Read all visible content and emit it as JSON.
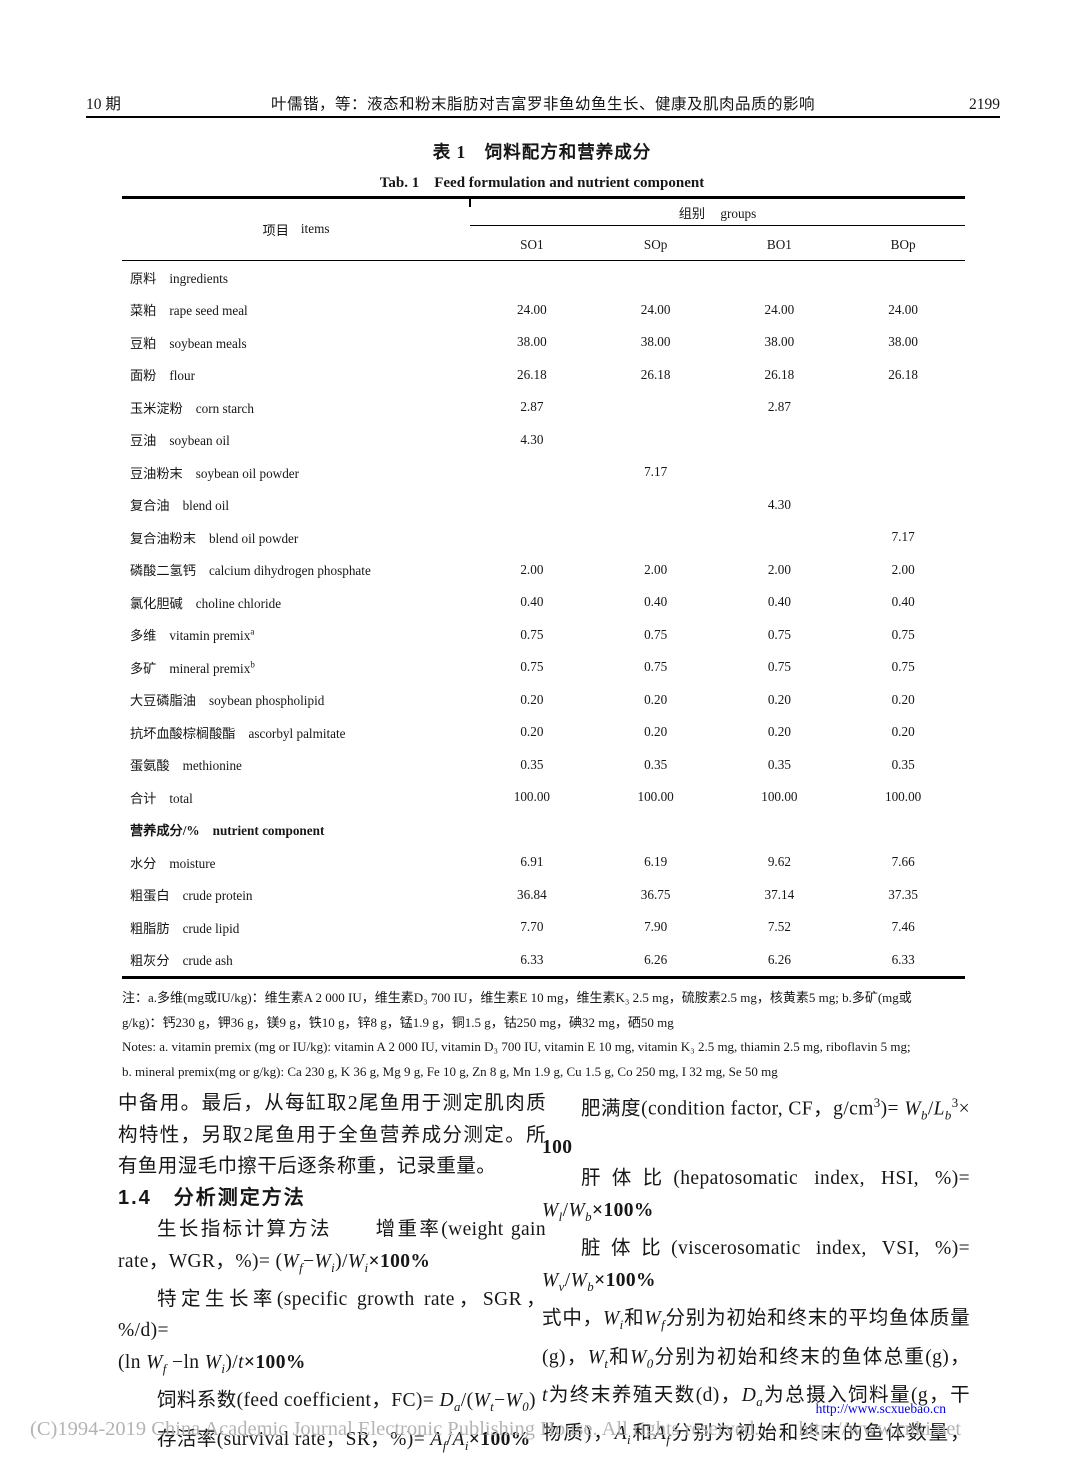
{
  "header": {
    "issue": "10 期",
    "running_title": "叶儒锴，等：液态和粉末脂肪对吉富罗非鱼幼鱼生长、健康及肌肉品质的影响",
    "page_number": "2199"
  },
  "table_title": {
    "cn": "表 1　饲料配方和营养成分",
    "en": "Tab. 1　Feed formulation and nutrient component"
  },
  "table": {
    "items_header_cn": "项目",
    "items_header_en": "items",
    "groups_header_cn": "组别",
    "groups_header_en": "groups",
    "group_cols": [
      "SO1",
      "SOp",
      "BO1",
      "BOp"
    ],
    "rows": [
      {
        "cn": "原料",
        "en": "ingredients",
        "section": true,
        "vals": [
          "",
          "",
          "",
          ""
        ]
      },
      {
        "cn": "菜粕",
        "en": "rape seed meal",
        "vals": [
          "24.00",
          "24.00",
          "24.00",
          "24.00"
        ]
      },
      {
        "cn": "豆粕",
        "en": "soybean meals",
        "vals": [
          "38.00",
          "38.00",
          "38.00",
          "38.00"
        ]
      },
      {
        "cn": "面粉",
        "en": "flour",
        "vals": [
          "26.18",
          "26.18",
          "26.18",
          "26.18"
        ]
      },
      {
        "cn": "玉米淀粉",
        "en": "corn starch",
        "vals": [
          "2.87",
          "",
          "2.87",
          ""
        ]
      },
      {
        "cn": "豆油",
        "en": "soybean oil",
        "vals": [
          "4.30",
          "",
          "",
          ""
        ]
      },
      {
        "cn": "豆油粉末",
        "en": "soybean oil powder",
        "vals": [
          "",
          "7.17",
          "",
          ""
        ]
      },
      {
        "cn": "复合油",
        "en": "blend oil",
        "vals": [
          "",
          "",
          "4.30",
          ""
        ]
      },
      {
        "cn": "复合油粉末",
        "en": "blend oil powder",
        "vals": [
          "",
          "",
          "",
          "7.17"
        ]
      },
      {
        "cn": "磷酸二氢钙",
        "en": "calcium dihydrogen phosphate",
        "vals": [
          "2.00",
          "2.00",
          "2.00",
          "2.00"
        ]
      },
      {
        "cn": "氯化胆碱",
        "en": "choline chloride",
        "vals": [
          "0.40",
          "0.40",
          "0.40",
          "0.40"
        ]
      },
      {
        "cn": "多维",
        "en": "vitamin premix",
        "sup": "a",
        "vals": [
          "0.75",
          "0.75",
          "0.75",
          "0.75"
        ]
      },
      {
        "cn": "多矿",
        "en": "mineral premix",
        "sup": "b",
        "vals": [
          "0.75",
          "0.75",
          "0.75",
          "0.75"
        ]
      },
      {
        "cn": "大豆磷脂油",
        "en": "soybean phospholipid",
        "vals": [
          "0.20",
          "0.20",
          "0.20",
          "0.20"
        ]
      },
      {
        "cn": "抗坏血酸棕榈酸酯",
        "en": "ascorbyl palmitate",
        "vals": [
          "0.20",
          "0.20",
          "0.20",
          "0.20"
        ]
      },
      {
        "cn": "蛋氨酸",
        "en": "methionine",
        "vals": [
          "0.35",
          "0.35",
          "0.35",
          "0.35"
        ]
      },
      {
        "cn": "合计",
        "en": "total",
        "vals": [
          "100.00",
          "100.00",
          "100.00",
          "100.00"
        ]
      },
      {
        "cn": "营养成分/%",
        "en": "nutrient component",
        "section": true,
        "bold": true,
        "vals": [
          "",
          "",
          "",
          ""
        ]
      },
      {
        "cn": "水分",
        "en": "moisture",
        "vals": [
          "6.91",
          "6.19",
          "9.62",
          "7.66"
        ]
      },
      {
        "cn": "粗蛋白",
        "en": "crude protein",
        "vals": [
          "36.84",
          "36.75",
          "37.14",
          "37.35"
        ]
      },
      {
        "cn": "粗脂肪",
        "en": "crude lipid",
        "vals": [
          "7.70",
          "7.90",
          "7.52",
          "7.46"
        ]
      },
      {
        "cn": "粗灰分",
        "en": "crude ash",
        "vals": [
          "6.33",
          "6.26",
          "6.26",
          "6.33"
        ]
      }
    ]
  },
  "notes": {
    "lines": [
      "注：a.多维(mg或IU/kg)：维生素A 2 000 IU，维生素D₃ 700 IU，维生素E 10 mg，维生素K₃ 2.5 mg，硫胺素2.5 mg，核黄素5 mg; b.多矿(mg或",
      "g/kg)：钙230 g，钾36 g，镁9 g，铁10 g，锌8 g，锰1.9 g，铜1.5 g，钴250 mg，碘32 mg，硒50 mg",
      "Notes: a. vitamin premix (mg or IU/kg): vitamin A 2 000 IU, vitamin D₃ 700 IU, vitamin E 10 mg, vitamin K₃ 2.5 mg, thiamin 2.5 mg, riboflavin 5 mg;",
      "b. mineral premix(mg or g/kg): Ca 230 g, K 36 g, Mg 9 g, Fe 10 g, Zn 8 g, Mn 1.9 g, Cu 1.5 g, Co 250 mg, I 32 mg, Se 50 mg"
    ]
  },
  "body": {
    "left": [
      {
        "j": true,
        "segs": [
          "中备用。最后，从每缸取2尾鱼用于测定肌肉质"
        ]
      },
      {
        "j": true,
        "segs": [
          "构特性，另取2尾鱼用于全鱼营养成分测定。所"
        ]
      },
      {
        "segs": [
          "有鱼用湿毛巾擦干后逐条称重，记录重量。"
        ]
      },
      {
        "hd": true,
        "segs": [
          "1.4　分析测定方法"
        ]
      },
      {
        "ind": true,
        "j": true,
        "segs": [
          "生长指标计算方法　　增重率(weight gain"
        ]
      },
      {
        "segs": [
          "rate，WGR，%)= (",
          {
            "t": "W",
            "i": true
          },
          {
            "t": "f",
            "sub": true,
            "i": true
          },
          "−",
          {
            "t": "W",
            "i": true
          },
          {
            "t": "i",
            "sub": true,
            "i": true
          },
          ")/",
          {
            "t": "W",
            "i": true
          },
          {
            "t": "i",
            "sub": true,
            "i": true
          },
          {
            "t": "×100%",
            "b": true
          }
        ]
      },
      {
        "ind": true,
        "j": true,
        "segs": [
          "特定生长率(specific growth rate，SGR，%/d)="
        ]
      },
      {
        "segs": [
          "(ln ",
          {
            "t": "W",
            "i": true
          },
          {
            "t": "f",
            "sub": true,
            "i": true
          },
          " −ln ",
          {
            "t": "W",
            "i": true
          },
          {
            "t": "i",
            "sub": true,
            "i": true
          },
          ")/",
          {
            "t": "t",
            "i": true
          },
          {
            "t": "×100%",
            "b": true
          }
        ]
      },
      {
        "ind": true,
        "segs": [
          "饲料系数(feed coefficient，FC)= ",
          {
            "t": "D",
            "i": true
          },
          {
            "t": "a",
            "sub": true,
            "i": true
          },
          "/(",
          {
            "t": "W",
            "i": true
          },
          {
            "t": "t",
            "sub": true,
            "i": true
          },
          "−",
          {
            "t": "W",
            "i": true
          },
          {
            "t": "0",
            "sub": true
          },
          ")"
        ]
      },
      {
        "ind": true,
        "segs": [
          "存活率(survival rate，SR，%)= ",
          {
            "t": "A",
            "i": true
          },
          {
            "t": "f",
            "sub": true,
            "i": true
          },
          "/",
          {
            "t": "A",
            "i": true
          },
          {
            "t": "i",
            "sub": true,
            "i": true
          },
          {
            "t": "×100%",
            "b": true
          }
        ]
      }
    ],
    "right": [
      {
        "ind": true,
        "j": true,
        "segs": [
          "肥满度(condition factor, CF，g/cm",
          {
            "t": "3",
            "sup": true
          },
          ")= ",
          {
            "t": "W",
            "i": true
          },
          {
            "t": "b",
            "sub": true,
            "i": true
          },
          "/",
          {
            "t": "L",
            "i": true
          },
          {
            "t": "b",
            "sub": true,
            "i": true
          },
          {
            "t": "3",
            "sup": true
          },
          "×"
        ]
      },
      {
        "segs": [
          {
            "t": "100",
            "b": true
          }
        ]
      },
      {
        "ind": true,
        "j": true,
        "segs": [
          "肝体比(hepatosomatic index, HSI, %)="
        ]
      },
      {
        "segs": [
          {
            "t": "W",
            "i": true
          },
          {
            "t": "l",
            "sub": true,
            "i": true
          },
          "/",
          {
            "t": "W",
            "i": true
          },
          {
            "t": "b",
            "sub": true,
            "i": true
          },
          {
            "t": "×100%",
            "b": true
          }
        ]
      },
      {
        "ind": true,
        "j": true,
        "segs": [
          "脏体比(viscerosomatic index, VSI, %)="
        ]
      },
      {
        "segs": [
          {
            "t": "W",
            "i": true
          },
          {
            "t": "v",
            "sub": true,
            "i": true
          },
          "/",
          {
            "t": "W",
            "i": true
          },
          {
            "t": "b",
            "sub": true,
            "i": true
          },
          {
            "t": "×100%",
            "b": true
          }
        ]
      },
      {
        "j": true,
        "segs": [
          "式中，",
          {
            "t": "W",
            "i": true
          },
          {
            "t": "i",
            "sub": true,
            "i": true
          },
          "和",
          {
            "t": "W",
            "i": true
          },
          {
            "t": "f",
            "sub": true,
            "i": true
          },
          "分别为初始和终末的平均鱼体质量"
        ]
      },
      {
        "j": true,
        "segs": [
          "(g)，",
          {
            "t": "W",
            "i": true
          },
          {
            "t": "t",
            "sub": true,
            "i": true
          },
          "和",
          {
            "t": "W",
            "i": true
          },
          {
            "t": "0",
            "sub": true
          },
          "分别为初始和终末的鱼体总重(g)，"
        ]
      },
      {
        "j": true,
        "segs": [
          {
            "t": "t",
            "i": true
          },
          "为终末养殖天数(d)，",
          {
            "t": "D",
            "i": true
          },
          {
            "t": "a",
            "sub": true,
            "i": true
          },
          "为总摄入饲料量(g，干"
        ]
      },
      {
        "j": true,
        "segs": [
          "物质)，",
          {
            "t": "A",
            "i": true
          },
          {
            "t": "i",
            "sub": true,
            "i": true
          },
          "和",
          {
            "t": "A",
            "i": true
          },
          {
            "t": "f",
            "sub": true,
            "i": true
          },
          "分别为初始和终末的鱼体数量，"
        ]
      }
    ]
  },
  "footer": {
    "journal_url": "http://www.scxuebao.cn",
    "copyright": "(C)1994-2019 China Academic Journal Electronic Publishing House. All rights reserved.",
    "cnki_url": "http://www.cnki.net"
  }
}
